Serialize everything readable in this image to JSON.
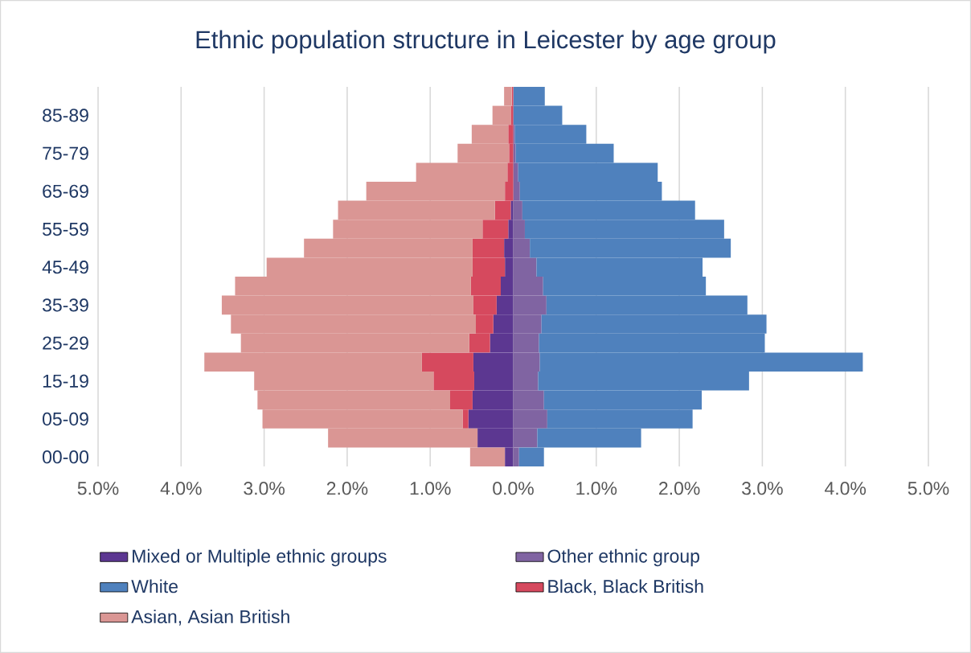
{
  "chart_data": {
    "type": "bar",
    "orientation": "horizontal",
    "stacked": true,
    "title": "Ethnic population structure in Leicester by age group",
    "categories": [
      null,
      "85-89",
      null,
      "75-79",
      null,
      "65-69",
      null,
      "55-59",
      null,
      "45-49",
      null,
      "35-39",
      null,
      "25-29",
      null,
      "15-19",
      null,
      "05-09",
      null,
      "00-00"
    ],
    "series": [
      {
        "name": "Mixed or Multiple ethnic groups",
        "color": "#5c3791",
        "values": [
          0,
          0,
          0,
          0,
          0,
          0,
          -0.03,
          -0.06,
          -0.11,
          -0.1,
          -0.15,
          -0.2,
          -0.24,
          -0.28,
          -0.48,
          -0.47,
          -0.49,
          -0.54,
          -0.43,
          -0.1
        ]
      },
      {
        "name": "Other ethnic group",
        "color": "#8064a2",
        "values": [
          0,
          0,
          0.02,
          0.03,
          0.06,
          0.08,
          0.11,
          0.14,
          0.2,
          0.28,
          0.36,
          0.4,
          0.34,
          0.31,
          0.32,
          0.3,
          0.37,
          0.41,
          0.29,
          0.07
        ]
      },
      {
        "name": "White",
        "color": "#4f81bd",
        "values": [
          0.38,
          0.59,
          0.86,
          1.18,
          1.68,
          1.71,
          2.08,
          2.4,
          2.42,
          2.0,
          1.96,
          2.42,
          2.71,
          2.72,
          3.89,
          2.54,
          1.9,
          1.75,
          1.25,
          0.3
        ]
      },
      {
        "name": "Black, Black British",
        "color": "#d6495e",
        "values": [
          -0.02,
          -0.03,
          -0.06,
          -0.05,
          -0.07,
          -0.1,
          -0.19,
          -0.31,
          -0.38,
          -0.39,
          -0.36,
          -0.28,
          -0.21,
          -0.25,
          -0.62,
          -0.49,
          -0.27,
          -0.07,
          0,
          0
        ]
      },
      {
        "name": "Asian, Asian British",
        "color": "#da9694",
        "values": [
          -0.09,
          -0.22,
          -0.44,
          -0.62,
          -1.1,
          -1.67,
          -1.89,
          -1.8,
          -2.03,
          -2.48,
          -2.84,
          -3.03,
          -2.95,
          -2.75,
          -2.62,
          -2.16,
          -2.32,
          -2.41,
          -1.8,
          -0.42
        ]
      }
    ],
    "xlim": [
      -5,
      5
    ],
    "xticks": [
      {
        "value": -5,
        "label": "5.0%"
      },
      {
        "value": -4,
        "label": "4.0%"
      },
      {
        "value": -3,
        "label": "3.0%"
      },
      {
        "value": -2,
        "label": "2.0%"
      },
      {
        "value": -1,
        "label": "1.0%"
      },
      {
        "value": 0,
        "label": "0.0%"
      },
      {
        "value": 1,
        "label": "1.0%"
      },
      {
        "value": 2,
        "label": "2.0%"
      },
      {
        "value": 3,
        "label": "3.0%"
      },
      {
        "value": 4,
        "label": "4.0%"
      },
      {
        "value": 5,
        "label": "5.0%"
      }
    ],
    "grid": "x",
    "legend": "bottom"
  }
}
